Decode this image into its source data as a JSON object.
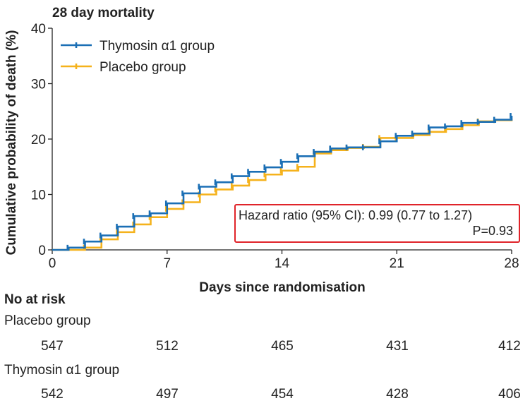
{
  "chart_data": {
    "type": "line",
    "title": "28 day mortality",
    "xlabel": "Days since randomisation",
    "ylabel": "Cumulative probability of death (%)",
    "xlim": [
      0,
      28
    ],
    "ylim": [
      0,
      40
    ],
    "xticks": [
      "0",
      "7",
      "14",
      "21",
      "28"
    ],
    "xtick_values": [
      0,
      7,
      14,
      21,
      28
    ],
    "yticks": [
      "0",
      "10",
      "20",
      "30",
      "40"
    ],
    "ytick_values": [
      0,
      10,
      20,
      30,
      40
    ],
    "grid": false,
    "legend_position": "top-left",
    "series": [
      {
        "name": "Thymosin α1 group",
        "color": "#1b6fb5",
        "step": true,
        "x": [
          0,
          1,
          2,
          3,
          4,
          5,
          6,
          7,
          8,
          9,
          10,
          11,
          12,
          13,
          14,
          15,
          16,
          17,
          18,
          19,
          20,
          21,
          22,
          23,
          24,
          25,
          26,
          27,
          28
        ],
        "y": [
          0,
          0.4,
          1.5,
          2.6,
          4.2,
          6.1,
          6.6,
          8.4,
          10.2,
          11.4,
          12.2,
          13.3,
          14.1,
          14.9,
          15.9,
          16.9,
          17.7,
          18.3,
          18.5,
          18.5,
          19.6,
          20.6,
          21.0,
          22.1,
          22.3,
          22.9,
          23.1,
          23.5,
          24.2
        ],
        "censor_x": [
          1,
          2,
          3,
          4,
          5,
          6,
          7,
          8,
          9,
          10,
          11,
          12,
          13,
          14,
          15,
          16,
          17,
          18,
          19,
          20,
          21,
          22,
          23,
          24,
          25,
          26,
          27,
          28
        ]
      },
      {
        "name": "Placebo group",
        "color": "#f5b21c",
        "step": true,
        "x": [
          0,
          2,
          3,
          4,
          5,
          6,
          7,
          8,
          9,
          10,
          11,
          12,
          13,
          14,
          15,
          16,
          17,
          18,
          19,
          20,
          21,
          22,
          23,
          24,
          25,
          26,
          27,
          28
        ],
        "y": [
          0,
          0.4,
          1.9,
          3.2,
          4.6,
          5.9,
          7.4,
          8.6,
          10.0,
          10.9,
          11.6,
          12.6,
          13.6,
          14.3,
          15.0,
          17.4,
          18.0,
          18.4,
          18.6,
          20.2,
          20.2,
          20.7,
          21.3,
          21.8,
          22.5,
          23.2,
          23.4,
          23.6
        ],
        "censor_x": [
          2,
          3,
          4,
          5,
          6,
          7,
          8,
          9,
          10,
          11,
          12,
          13,
          14,
          15,
          16,
          17,
          18,
          19,
          20,
          21,
          22,
          23,
          24,
          25,
          26,
          27
        ]
      }
    ],
    "annotations": [
      "Hazard ratio (95% CI): 0.99 (0.77 to 1.27)",
      "P=0.93"
    ]
  },
  "risk_table": {
    "title": "No at risk",
    "groups": [
      {
        "name": "Placebo group",
        "counts": [
          "547",
          "512",
          "465",
          "431",
          "412"
        ]
      },
      {
        "name": "Thymosin α1 group",
        "counts": [
          "542",
          "497",
          "454",
          "428",
          "406"
        ]
      }
    ]
  }
}
